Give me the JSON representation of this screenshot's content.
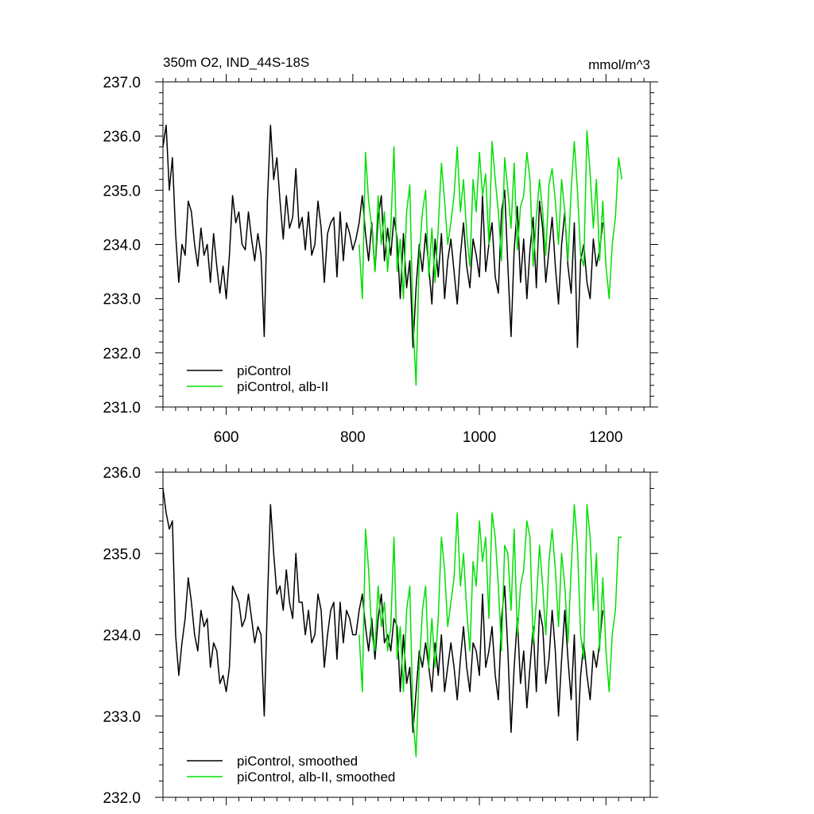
{
  "figure": {
    "title_left": "350m O2, IND_44S-18S",
    "title_right": "mmol/m^3"
  },
  "colors": {
    "control": "#000000",
    "albedo": "#00e000",
    "axis": "#000000"
  },
  "chart_data": [
    {
      "type": "line",
      "title": "350m O2, IND_44S-18S",
      "units": "mmol/m^3",
      "xlim": [
        500,
        1270
      ],
      "ylim": [
        231.0,
        237.0
      ],
      "x_ticks": [
        600,
        800,
        1000,
        1200
      ],
      "x_tick_labels": [
        "600",
        "800",
        "1000",
        "1200"
      ],
      "y_ticks": [
        231.0,
        232.0,
        233.0,
        234.0,
        235.0,
        236.0,
        237.0
      ],
      "y_tick_labels": [
        "231.0",
        "232.0",
        "233.0",
        "234.0",
        "235.0",
        "236.0",
        "237.0"
      ],
      "grid": false,
      "legend_placement": "bottom-left",
      "series": [
        {
          "name": "piControl",
          "color": "#000000",
          "x_start": 500,
          "x_step": 5,
          "values": [
            235.8,
            236.2,
            235.0,
            235.6,
            234.2,
            233.3,
            234.0,
            233.8,
            234.8,
            234.6,
            234.0,
            233.6,
            234.3,
            233.8,
            234.0,
            233.3,
            234.2,
            233.6,
            233.1,
            233.6,
            233.0,
            233.8,
            234.9,
            234.4,
            234.6,
            234.0,
            233.9,
            234.6,
            234.1,
            233.7,
            234.2,
            233.8,
            232.3,
            234.8,
            236.2,
            235.2,
            235.6,
            234.8,
            234.1,
            234.9,
            234.3,
            234.5,
            235.4,
            234.3,
            234.5,
            233.9,
            234.6,
            233.8,
            234.0,
            234.8,
            234.3,
            233.3,
            234.2,
            234.4,
            234.5,
            233.4,
            234.6,
            233.7,
            234.4,
            234.2,
            233.9,
            234.1,
            234.4,
            234.9,
            234.2,
            233.7,
            234.4,
            233.5,
            234.5,
            234.9,
            233.7,
            234.3,
            233.8,
            234.5,
            234.1,
            233.0,
            234.2,
            233.2,
            233.7,
            232.1,
            233.2,
            234.0,
            233.5,
            234.2,
            233.6,
            232.9,
            234.1,
            233.4,
            234.2,
            233.0,
            233.7,
            234.1,
            233.5,
            232.9,
            233.8,
            234.4,
            233.6,
            233.2,
            234.1,
            233.8,
            233.4,
            234.9,
            233.5,
            234.0,
            234.4,
            233.4,
            233.1,
            234.6,
            235.0,
            233.6,
            232.3,
            233.9,
            234.7,
            233.3,
            234.1,
            233.0,
            233.9,
            234.5,
            233.2,
            234.8,
            234.3,
            233.3,
            233.9,
            234.5,
            233.6,
            232.9,
            234.0,
            234.6,
            233.6,
            233.1,
            234.4,
            232.1,
            233.7,
            234.0,
            233.3,
            233.0,
            234.1,
            233.6,
            233.9,
            234.4
          ],
          "smoothed": false
        },
        {
          "name": "piControl, alb-II",
          "color": "#00e000",
          "x_start": 810,
          "x_step": 5,
          "values": [
            234.0,
            233.0,
            235.7,
            234.8,
            234.3,
            233.5,
            234.9,
            234.0,
            234.6,
            233.5,
            234.3,
            235.8,
            233.5,
            234.1,
            233.0,
            234.6,
            235.1,
            232.6,
            231.4,
            233.8,
            234.6,
            235.0,
            233.4,
            234.3,
            233.3,
            234.3,
            235.5,
            234.8,
            234.0,
            234.4,
            234.9,
            235.8,
            234.6,
            235.2,
            234.2,
            233.6,
            235.2,
            234.6,
            235.7,
            234.9,
            235.3,
            234.0,
            235.9,
            235.2,
            234.6,
            233.7,
            235.6,
            235.0,
            234.3,
            235.5,
            233.9,
            234.7,
            234.9,
            235.7,
            235.2,
            233.6,
            234.5,
            235.2,
            234.6,
            233.8,
            235.1,
            235.4,
            234.8,
            234.0,
            235.2,
            234.6,
            233.7,
            235.0,
            235.9,
            235.0,
            233.8,
            233.6,
            236.1,
            235.3,
            234.3,
            235.2,
            233.7,
            234.8,
            233.6,
            233.0,
            234.0,
            234.5,
            235.6,
            235.2
          ]
        }
      ]
    },
    {
      "type": "line",
      "xlim": [
        500,
        1270
      ],
      "ylim": [
        232.0,
        236.0
      ],
      "x_ticks": [
        600,
        800,
        1000,
        1200
      ],
      "y_ticks": [
        232.0,
        233.0,
        234.0,
        235.0,
        236.0
      ],
      "y_tick_labels": [
        "232.0",
        "233.0",
        "234.0",
        "235.0",
        "236.0"
      ],
      "grid": false,
      "legend_placement": "bottom-left",
      "series": [
        {
          "name": "piControl, smoothed",
          "color": "#000000",
          "x_start": 500,
          "x_step": 5,
          "values": [
            235.8,
            235.5,
            235.3,
            235.4,
            234.0,
            233.5,
            233.9,
            234.2,
            234.7,
            234.4,
            234.0,
            233.8,
            234.3,
            234.1,
            234.2,
            233.6,
            233.9,
            233.8,
            233.4,
            233.5,
            233.3,
            233.6,
            234.6,
            234.5,
            234.4,
            234.1,
            234.2,
            234.5,
            234.2,
            233.9,
            234.1,
            234.0,
            233.0,
            234.4,
            235.6,
            235.0,
            234.5,
            234.6,
            234.3,
            234.8,
            234.4,
            234.2,
            235.0,
            234.4,
            234.4,
            234.0,
            234.3,
            233.9,
            234.0,
            234.5,
            234.3,
            233.6,
            234.0,
            234.3,
            234.4,
            233.7,
            234.4,
            233.9,
            234.3,
            234.2,
            234.0,
            234.0,
            234.3,
            234.5,
            234.1,
            233.8,
            234.2,
            233.7,
            234.2,
            234.5,
            233.9,
            234.0,
            233.8,
            234.2,
            234.1,
            233.3,
            234.0,
            233.4,
            233.6,
            232.8,
            233.3,
            233.8,
            233.6,
            233.9,
            233.6,
            233.3,
            233.9,
            233.5,
            234.0,
            233.3,
            233.6,
            233.9,
            233.6,
            233.2,
            233.7,
            234.1,
            233.6,
            233.3,
            233.9,
            233.8,
            233.5,
            234.5,
            233.6,
            233.8,
            234.1,
            233.5,
            233.2,
            234.2,
            234.6,
            233.8,
            232.8,
            233.6,
            234.2,
            233.4,
            233.8,
            233.1,
            233.6,
            234.1,
            233.3,
            234.3,
            234.1,
            233.4,
            233.7,
            234.3,
            233.8,
            233.0,
            233.7,
            234.3,
            233.7,
            233.2,
            234.0,
            232.7,
            233.5,
            233.9,
            233.5,
            233.2,
            233.8,
            233.6,
            233.9,
            234.3
          ],
          "smoothed": true
        },
        {
          "name": "piControl, alb-II, smoothed",
          "color": "#00e000",
          "x_start": 810,
          "x_step": 5,
          "values": [
            234.0,
            233.3,
            235.3,
            234.8,
            234.0,
            233.8,
            234.6,
            234.1,
            234.4,
            233.8,
            234.1,
            235.2,
            233.7,
            234.1,
            233.3,
            234.3,
            234.6,
            233.0,
            232.5,
            233.6,
            234.3,
            234.6,
            233.6,
            234.2,
            233.6,
            234.2,
            235.2,
            234.8,
            234.1,
            234.4,
            234.7,
            235.5,
            234.6,
            235.0,
            234.3,
            233.8,
            234.9,
            234.6,
            235.4,
            234.9,
            235.2,
            234.2,
            235.5,
            235.2,
            234.6,
            233.8,
            235.1,
            235.0,
            234.3,
            235.3,
            234.0,
            234.6,
            234.8,
            235.4,
            235.2,
            233.9,
            234.4,
            235.1,
            234.6,
            234.0,
            234.9,
            235.3,
            234.8,
            234.1,
            235.0,
            234.6,
            233.9,
            234.8,
            235.6,
            235.1,
            234.0,
            233.7,
            235.6,
            235.2,
            234.3,
            235.0,
            233.8,
            234.7,
            233.8,
            233.3,
            234.0,
            234.3,
            235.2,
            235.2
          ]
        }
      ]
    }
  ]
}
